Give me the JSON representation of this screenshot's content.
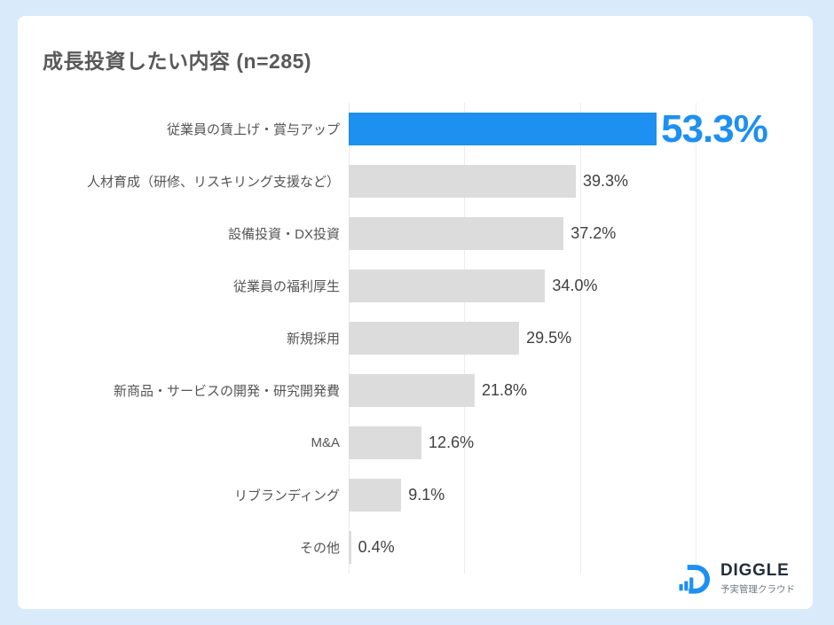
{
  "page": {
    "background_color": "#d9eafa",
    "card_color": "#ffffff"
  },
  "header": {
    "title": "成長投資したい内容 (n=285)"
  },
  "chart_data": {
    "type": "bar",
    "orientation": "horizontal",
    "title": "成長投資したい内容 (n=285)",
    "sample_size": 285,
    "categories": [
      "従業員の賃上げ・賞与アップ",
      "人材育成（研修、リスキリング支援など）",
      "設備投資・DX投資",
      "従業員の福利厚生",
      "新規採用",
      "新商品・サービスの開発・研究開発費",
      "M&A",
      "リブランディング",
      "その他"
    ],
    "values": [
      53.3,
      39.3,
      37.2,
      34.0,
      29.5,
      21.8,
      12.6,
      9.1,
      0.4
    ],
    "value_labels": [
      "53.3%",
      "39.3%",
      "37.2%",
      "34.0%",
      "29.5%",
      "21.8%",
      "12.6%",
      "9.1%",
      "0.4%"
    ],
    "highlight_index": 0,
    "highlight_color": "#1e90f0",
    "bar_color": "#dcdcdc",
    "value_label_color": "#404040",
    "xlabel": "",
    "ylabel": "",
    "xlim": [
      0,
      80
    ],
    "gridlines": [
      0,
      20,
      40,
      60
    ],
    "grid": true,
    "legend": false
  },
  "logo": {
    "name": "DIGGLE",
    "tagline": "予実管理クラウド",
    "color": "#1e90f0"
  }
}
